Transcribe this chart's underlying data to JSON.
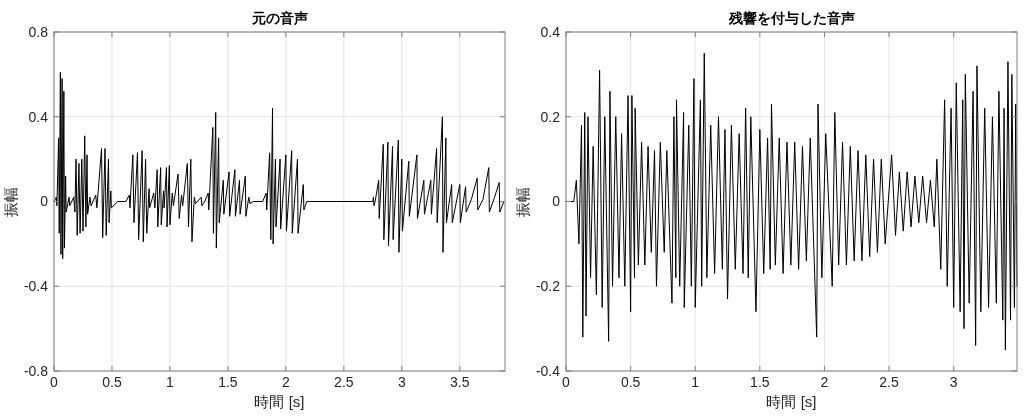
{
  "chart_data": [
    {
      "type": "line",
      "title": "元の音声",
      "xlabel": "時間 [s]",
      "ylabel": "振幅",
      "xlim": [
        0,
        3.89
      ],
      "ylim": [
        -0.8,
        0.8
      ],
      "xticks": [
        0,
        0.5,
        1,
        1.5,
        2,
        2.5,
        3,
        3.5
      ],
      "yticks": [
        -0.8,
        -0.4,
        0,
        0.4,
        0.8
      ],
      "grid": true,
      "color": "#000000",
      "x": [
        0,
        0.02,
        0.025,
        0.04,
        0.045,
        0.055,
        0.06,
        0.07,
        0.075,
        0.085,
        0.09,
        0.1,
        0.105,
        0.13,
        0.135,
        0.17,
        0.18,
        0.19,
        0.2,
        0.215,
        0.225,
        0.24,
        0.25,
        0.265,
        0.275,
        0.285,
        0.29,
        0.31,
        0.32,
        0.36,
        0.37,
        0.41,
        0.42,
        0.44,
        0.45,
        0.47,
        0.475,
        0.49,
        0.495,
        0.55,
        0.62,
        0.65,
        0.655,
        0.68,
        0.69,
        0.72,
        0.73,
        0.76,
        0.77,
        0.79,
        0.8,
        0.82,
        0.825,
        0.86,
        0.87,
        0.89,
        0.895,
        0.92,
        0.925,
        0.945,
        0.95,
        0.97,
        0.975,
        0.995,
        1.0,
        1.02,
        1.03,
        1.07,
        1.08,
        1.1,
        1.11,
        1.15,
        1.16,
        1.18,
        1.19,
        1.21,
        1.22,
        1.27,
        1.275,
        1.3,
        1.33,
        1.335,
        1.37,
        1.375,
        1.395,
        1.4,
        1.42,
        1.425,
        1.46,
        1.465,
        1.51,
        1.515,
        1.56,
        1.565,
        1.6,
        1.605,
        1.65,
        1.655,
        1.68,
        1.69,
        1.72,
        1.8,
        1.83,
        1.835,
        1.86,
        1.87,
        1.885,
        1.89,
        1.91,
        1.915,
        1.95,
        1.955,
        2.0,
        2.005,
        2.05,
        2.055,
        2.1,
        2.105,
        2.15,
        2.155,
        2.18,
        2.75,
        2.755,
        2.76,
        2.77,
        2.8,
        2.805,
        2.84,
        2.845,
        2.88,
        2.885,
        2.92,
        2.925,
        2.97,
        2.975,
        3.0,
        3.005,
        3.06,
        3.065,
        3.13,
        3.135,
        3.19,
        3.195,
        3.25,
        3.255,
        3.3,
        3.305,
        3.35,
        3.355,
        3.38,
        3.385,
        3.43,
        3.435,
        3.5,
        3.505,
        3.55,
        3.555,
        3.6,
        3.65,
        3.655,
        3.7,
        3.75,
        3.755,
        3.8,
        3.84,
        3.845,
        3.88
      ],
      "values": [
        0,
        0.02,
        -0.02,
        0.3,
        -0.15,
        0.61,
        -0.25,
        0.58,
        -0.27,
        0.52,
        -0.22,
        0.12,
        -0.05,
        0.02,
        -0.02,
        0.02,
        -0.05,
        0.2,
        -0.16,
        0.18,
        -0.15,
        0.2,
        -0.14,
        0.31,
        -0.12,
        0.22,
        -0.06,
        0.02,
        -0.02,
        0.03,
        -0.03,
        0.25,
        -0.17,
        0.25,
        -0.16,
        0.2,
        -0.1,
        0.05,
        -0.03,
        0,
        0,
        0.03,
        -0.03,
        0.22,
        -0.1,
        0.23,
        -0.18,
        0.24,
        -0.19,
        0.2,
        -0.15,
        0.06,
        -0.03,
        0.04,
        -0.03,
        0.15,
        -0.12,
        0.16,
        -0.11,
        0.05,
        -0.03,
        0.16,
        -0.12,
        0.17,
        -0.11,
        0.04,
        -0.02,
        0.13,
        -0.08,
        0.03,
        -0.02,
        0.18,
        -0.12,
        0.2,
        -0.19,
        0.02,
        -0.01,
        0.02,
        -0.02,
        0,
        0.04,
        -0.04,
        0.35,
        -0.15,
        0.42,
        -0.22,
        0.3,
        -0.1,
        0.1,
        -0.06,
        0.14,
        -0.07,
        0.15,
        -0.07,
        0.1,
        -0.06,
        0.12,
        -0.07,
        0.02,
        -0.01,
        0,
        0,
        0.04,
        -0.04,
        0.23,
        -0.18,
        0.44,
        -0.2,
        0.2,
        -0.12,
        0.2,
        -0.13,
        0.22,
        -0.14,
        0.24,
        -0.15,
        0.2,
        -0.15,
        0.08,
        -0.04,
        0,
        0,
        0.02,
        -0.02,
        0,
        0.1,
        -0.08,
        0.27,
        -0.18,
        0.28,
        -0.21,
        0.26,
        -0.18,
        0.29,
        -0.24,
        0.2,
        -0.14,
        0.19,
        -0.07,
        0.22,
        -0.08,
        0.1,
        -0.06,
        0.1,
        -0.06,
        0.25,
        -0.1,
        0.4,
        -0.24,
        0.3,
        -0.1,
        0.08,
        -0.1,
        0.08,
        -0.1,
        0.07,
        -0.05,
        0.01,
        0.11,
        -0.04,
        0.01,
        0.16,
        -0.05,
        0.02,
        0.09,
        -0.05,
        0
      ]
    },
    {
      "type": "line",
      "title": "残響を付与した音声",
      "xlabel": "時間 [s]",
      "ylabel": "振幅",
      "xlim": [
        0,
        3.49
      ],
      "ylim": [
        -0.4,
        0.4
      ],
      "xticks": [
        0,
        0.5,
        1,
        1.5,
        2,
        2.5,
        3
      ],
      "yticks": [
        -0.4,
        -0.2,
        0,
        0.2,
        0.4
      ],
      "grid": true,
      "color": "#000000",
      "x": [
        0,
        0.06,
        0.08,
        0.1,
        0.12,
        0.13,
        0.145,
        0.155,
        0.17,
        0.19,
        0.21,
        0.235,
        0.26,
        0.28,
        0.3,
        0.33,
        0.34,
        0.36,
        0.385,
        0.41,
        0.43,
        0.455,
        0.48,
        0.5,
        0.51,
        0.53,
        0.535,
        0.56,
        0.585,
        0.61,
        0.635,
        0.66,
        0.685,
        0.7,
        0.73,
        0.76,
        0.78,
        0.82,
        0.835,
        0.85,
        0.855,
        0.88,
        0.91,
        0.915,
        0.95,
        0.97,
        0.99,
        1.0,
        1.04,
        1.05,
        1.07,
        1.09,
        1.12,
        1.15,
        1.18,
        1.21,
        1.23,
        1.25,
        1.28,
        1.31,
        1.34,
        1.37,
        1.39,
        1.41,
        1.43,
        1.47,
        1.5,
        1.53,
        1.56,
        1.58,
        1.59,
        1.62,
        1.65,
        1.68,
        1.71,
        1.74,
        1.77,
        1.8,
        1.83,
        1.86,
        1.89,
        1.94,
        1.95,
        1.98,
        2.01,
        2.06,
        2.08,
        2.11,
        2.14,
        2.17,
        2.2,
        2.23,
        2.26,
        2.29,
        2.32,
        2.35,
        2.38,
        2.41,
        2.44,
        2.47,
        2.52,
        2.55,
        2.58,
        2.61,
        2.64,
        2.67,
        2.7,
        2.73,
        2.76,
        2.79,
        2.82,
        2.85,
        2.87,
        2.9,
        2.93,
        2.95,
        2.98,
        3.0,
        3.02,
        3.05,
        3.07,
        3.08,
        3.09,
        3.12,
        3.15,
        3.17,
        3.18,
        3.21,
        3.24,
        3.27,
        3.3,
        3.33,
        3.35,
        3.38,
        3.39,
        3.4,
        3.42,
        3.44,
        3.45,
        3.47,
        3.48,
        3.49
      ],
      "values": [
        0,
        0,
        0.05,
        -0.1,
        0.18,
        -0.32,
        0.21,
        -0.27,
        0.2,
        -0.18,
        0.13,
        -0.22,
        0.31,
        -0.25,
        0.2,
        -0.33,
        0.26,
        -0.2,
        0.2,
        -0.18,
        0.16,
        -0.2,
        0.25,
        -0.26,
        0.25,
        -0.18,
        0.22,
        -0.15,
        0.14,
        -0.15,
        0.13,
        -0.12,
        0.12,
        -0.2,
        0.14,
        -0.12,
        0.12,
        -0.24,
        0.2,
        -0.18,
        0.24,
        -0.2,
        0.21,
        -0.25,
        0.18,
        -0.2,
        0.29,
        -0.25,
        0.24,
        -0.2,
        0.35,
        -0.18,
        0.18,
        -0.17,
        0.2,
        -0.16,
        0.17,
        -0.23,
        0.18,
        -0.16,
        0.16,
        -0.17,
        0.22,
        -0.18,
        0.2,
        -0.26,
        0.17,
        -0.17,
        0.15,
        -0.16,
        0.23,
        -0.15,
        0.15,
        -0.17,
        0.14,
        -0.15,
        0.14,
        -0.16,
        0.13,
        -0.14,
        0.15,
        -0.32,
        0.23,
        -0.18,
        0.16,
        -0.2,
        0.21,
        -0.15,
        0.14,
        -0.15,
        0.13,
        -0.14,
        0.12,
        -0.14,
        0.11,
        -0.13,
        0.1,
        -0.12,
        0.1,
        -0.1,
        0.11,
        -0.08,
        0.07,
        -0.07,
        0.07,
        -0.06,
        0.06,
        -0.05,
        0.06,
        -0.05,
        0.05,
        -0.06,
        0.1,
        -0.16,
        0.24,
        -0.2,
        0.22,
        -0.25,
        0.28,
        -0.26,
        0.24,
        -0.3,
        0.3,
        -0.24,
        0.26,
        -0.34,
        0.32,
        -0.26,
        0.22,
        -0.25,
        0.2,
        -0.24,
        0.26,
        -0.28,
        0.22,
        -0.35,
        0.33,
        -0.28,
        0.3,
        -0.25,
        0.23,
        -0.2
      ]
    }
  ]
}
